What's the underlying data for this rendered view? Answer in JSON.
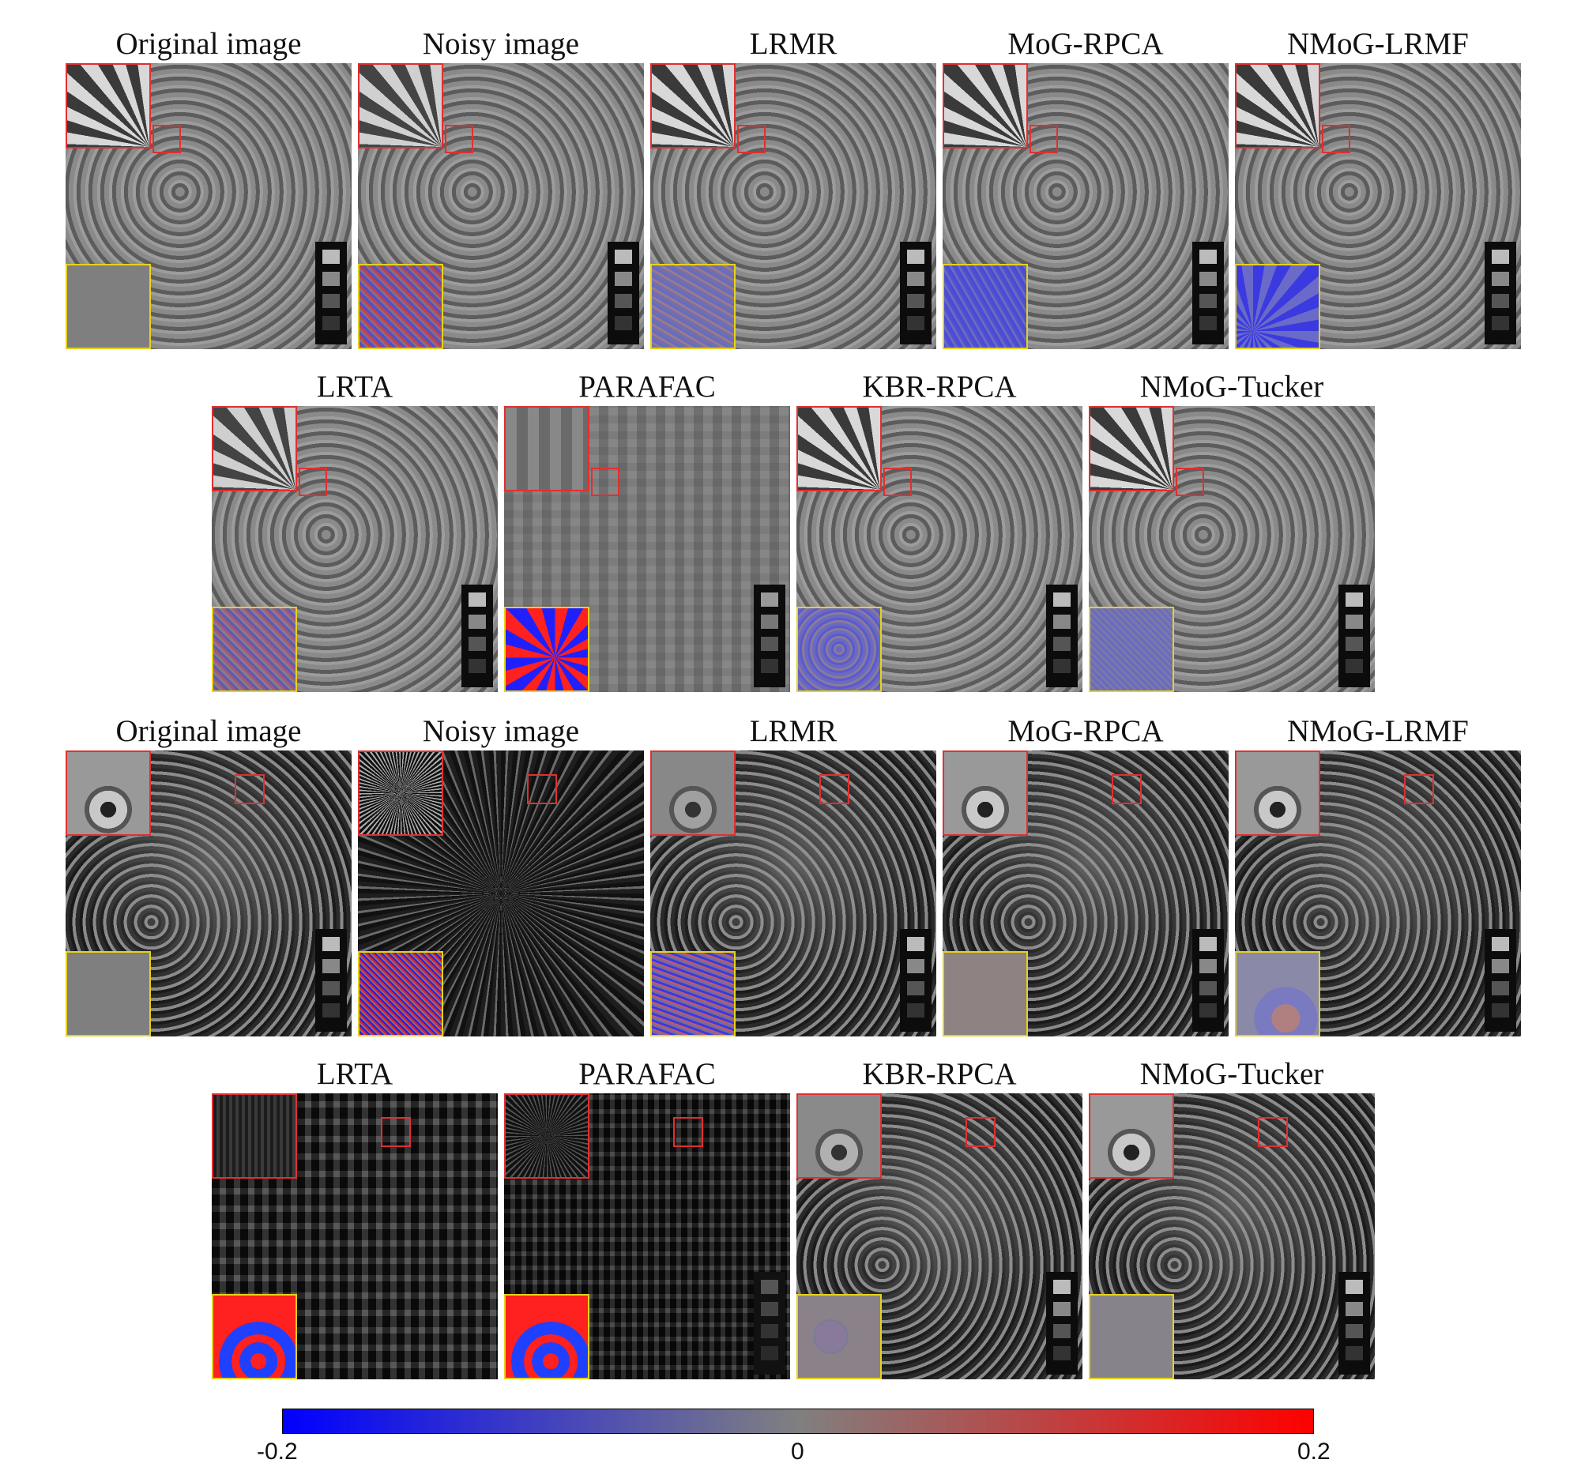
{
  "figure": {
    "top_group": {
      "row1_titles": [
        "Original image",
        "Noisy image",
        "LRMR",
        "MoG-RPCA",
        "NMoG-LRMF"
      ],
      "row2_titles": [
        "LRTA",
        "PARAFAC",
        "KBR-RPCA",
        "NMoG-Tucker"
      ]
    },
    "bottom_group": {
      "row1_titles": [
        "Original image",
        "Noisy image",
        "LRMR",
        "MoG-RPCA",
        "NMoG-LRMF"
      ],
      "row2_titles": [
        "LRTA",
        "PARAFAC",
        "KBR-RPCA",
        "NMoG-Tucker"
      ]
    },
    "colorbar": {
      "min_label": "-0.2",
      "mid_label": "0",
      "max_label": "0.2",
      "colors": {
        "min": "#0000ff",
        "mid": "#808080",
        "max": "#ff0000"
      }
    }
  }
}
